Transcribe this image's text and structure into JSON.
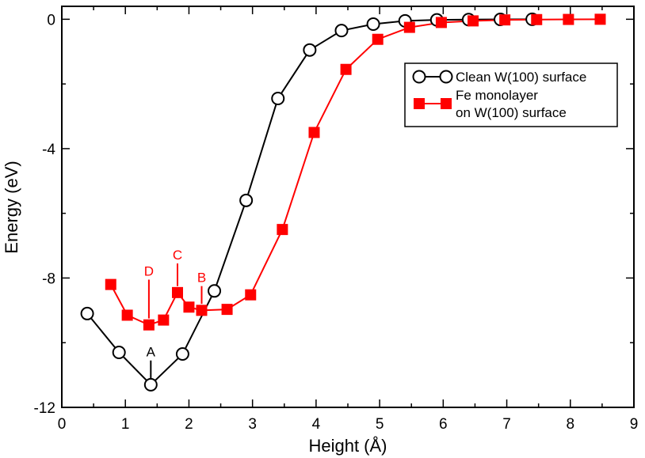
{
  "chart_data": {
    "type": "line",
    "xlabel": "Height (Å)",
    "ylabel": "Energy (eV)",
    "xlim": [
      0,
      9
    ],
    "ylim": [
      -12,
      0.4
    ],
    "xticks": [
      0,
      1,
      2,
      3,
      4,
      5,
      6,
      7,
      8,
      9
    ],
    "yticks": [
      -12,
      -8,
      -4,
      0
    ],
    "xtick_labels": [
      "0",
      "1",
      "2",
      "3",
      "4",
      "5",
      "6",
      "7",
      "8",
      "9"
    ],
    "ytick_labels": [
      "-12",
      "-8",
      "-4",
      "0"
    ],
    "grid": false,
    "legend_position": "top-right",
    "colors": {
      "clean": "#000000",
      "fe": "#ff0000"
    },
    "series": [
      {
        "name": "Clean W(100) surface",
        "marker": "open-circle",
        "x": [
          0.4,
          0.9,
          1.4,
          1.9,
          2.4,
          2.9,
          3.4,
          3.9,
          4.4,
          4.9,
          5.4,
          5.9,
          6.4,
          6.9,
          7.4
        ],
        "y": [
          -9.1,
          -10.3,
          -11.3,
          -10.35,
          -8.4,
          -5.6,
          -2.45,
          -0.95,
          -0.35,
          -0.15,
          -0.05,
          -0.02,
          -0.01,
          -0.005,
          0.0
        ]
      },
      {
        "name": "Fe monolayer\non W(100) surface",
        "marker": "filled-square",
        "x": [
          0.77,
          1.03,
          1.37,
          1.6,
          1.82,
          2.0,
          2.2,
          2.6,
          2.97,
          3.47,
          3.97,
          4.47,
          4.97,
          5.47,
          5.97,
          6.47,
          6.97,
          7.47,
          7.97,
          8.47
        ],
        "y": [
          -8.2,
          -9.15,
          -9.45,
          -9.3,
          -8.45,
          -8.9,
          -9.0,
          -8.97,
          -8.52,
          -6.5,
          -3.5,
          -1.55,
          -0.62,
          -0.25,
          -0.1,
          -0.05,
          -0.02,
          -0.01,
          -0.005,
          0.0
        ]
      }
    ],
    "legend": [
      "Clean W(100) surface",
      "Fe monolayer",
      "on W(100) surface"
    ],
    "annotations": [
      {
        "label": "A",
        "x": 1.4,
        "y": -11.3,
        "color": "#000000",
        "tip_y": -11.1,
        "line_top_y": -10.55
      },
      {
        "label": "D",
        "x": 1.37,
        "y": -9.45,
        "color": "#ff0000",
        "tip_y": -9.25,
        "line_top_y": -8.05
      },
      {
        "label": "C",
        "x": 1.82,
        "y": -8.45,
        "color": "#ff0000",
        "tip_y": -8.25,
        "line_top_y": -7.55
      },
      {
        "label": "B",
        "x": 2.2,
        "y": -9.0,
        "color": "#ff0000",
        "tip_y": -8.8,
        "line_top_y": -8.25
      }
    ]
  }
}
